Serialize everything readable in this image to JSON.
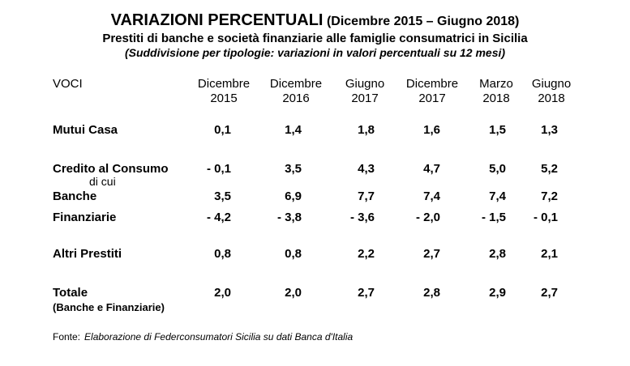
{
  "colors": {
    "text": "#000000",
    "background": "#ffffff"
  },
  "header": {
    "title_main": "VARIAZIONI PERCENTUALI",
    "title_period": "(Dicembre 2015 – Giugno 2018)",
    "subtitle": "Prestiti di banche e società finanziarie alle famiglie consumatrici in Sicilia",
    "subtitle2": "(Suddivisione per tipologie: variazioni in valori percentuali su 12 mesi)"
  },
  "table": {
    "voci_header": "VOCI",
    "columns": [
      {
        "line1": "Dicembre",
        "line2": "2015"
      },
      {
        "line1": "Dicembre",
        "line2": "2016"
      },
      {
        "line1": "Giugno",
        "line2": "2017"
      },
      {
        "line1": "Dicembre",
        "line2": "2017"
      },
      {
        "line1": "Marzo",
        "line2": "2018"
      },
      {
        "line1": "Giugno",
        "line2": "2018"
      }
    ],
    "rows": [
      {
        "label": "Mutui Casa",
        "sublabel": "",
        "values": [
          "0,1",
          "1,4",
          "1,8",
          "1,6",
          "1,5",
          "1,3"
        ]
      },
      {
        "label": "Credito al Consumo",
        "sublabel": "di cui",
        "values": [
          "- 0,1",
          "3,5",
          "4,3",
          "4,7",
          "5,0",
          "5,2"
        ]
      },
      {
        "label": "Banche",
        "sublabel": "",
        "values": [
          "3,5",
          "6,9",
          "7,7",
          "7,4",
          "7,4",
          "7,2"
        ]
      },
      {
        "label": "Finanziarie",
        "sublabel": "",
        "values": [
          "- 4,2",
          "- 3,8",
          "- 3,6",
          "- 2,0",
          "- 1,5",
          "- 0,1"
        ]
      },
      {
        "label": "Altri Prestiti",
        "sublabel": "",
        "values": [
          "0,8",
          "0,8",
          "2,2",
          "2,7",
          "2,8",
          "2,1"
        ]
      },
      {
        "label": "Totale",
        "sublabel": "(Banche e Finanziarie)",
        "values": [
          "2,0",
          "2,0",
          "2,7",
          "2,8",
          "2,9",
          "2,7"
        ]
      }
    ]
  },
  "footer": {
    "source_label": "Fonte:",
    "source_text": "Elaborazione di Federconsumatori Sicilia su dati Banca d'Italia"
  },
  "chart_data": {
    "type": "table",
    "title": "VARIAZIONI PERCENTUALI (Dicembre 2015 – Giugno 2018)",
    "subtitle": "Prestiti di banche e società finanziarie alle famiglie consumatrici in Sicilia",
    "note": "(Suddivisione per tipologie: variazioni in valori percentuali su 12 mesi)",
    "columns": [
      "VOCI",
      "Dicembre 2015",
      "Dicembre 2016",
      "Giugno 2017",
      "Dicembre 2017",
      "Marzo 2018",
      "Giugno 2018"
    ],
    "rows": [
      [
        "Mutui Casa",
        0.1,
        1.4,
        1.8,
        1.6,
        1.5,
        1.3
      ],
      [
        "Credito al Consumo (di cui)",
        -0.1,
        3.5,
        4.3,
        4.7,
        5.0,
        5.2
      ],
      [
        "Banche",
        3.5,
        6.9,
        7.7,
        7.4,
        7.4,
        7.2
      ],
      [
        "Finanziarie",
        -4.2,
        -3.8,
        -3.6,
        -2.0,
        -1.5,
        -0.1
      ],
      [
        "Altri Prestiti",
        0.8,
        0.8,
        2.2,
        2.7,
        2.8,
        2.1
      ],
      [
        "Totale (Banche e Finanziarie)",
        2.0,
        2.0,
        2.7,
        2.8,
        2.9,
        2.7
      ]
    ],
    "source": "Fonte: Elaborazione di Federconsumatori Sicilia su dati Banca d'Italia"
  }
}
